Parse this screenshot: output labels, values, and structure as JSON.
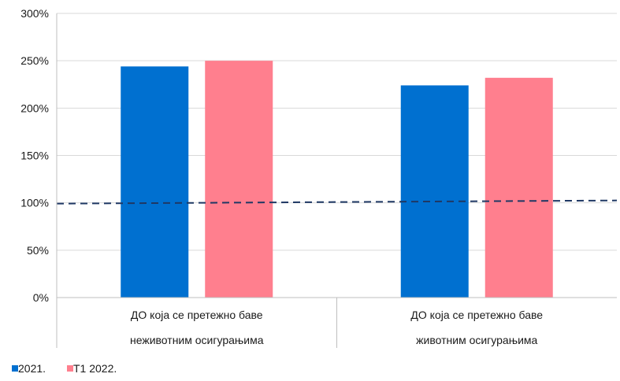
{
  "chart_data": {
    "type": "bar",
    "categories": [
      [
        "ДО која се претежно баве",
        "неживотним осигурањима"
      ],
      [
        "ДО која се претежно баве",
        "животним осигурањима"
      ]
    ],
    "series": [
      {
        "name": "2021.",
        "values": [
          244,
          224
        ],
        "color": "#0070D0"
      },
      {
        "name": "T1 2022.",
        "values": [
          250,
          232
        ],
        "color": "#FF7F8E"
      }
    ],
    "reference_line": {
      "value": 100,
      "style": "dashed",
      "color": "#1F3864"
    },
    "ylim": [
      0,
      300
    ],
    "yticks": [
      "0%",
      "50%",
      "100%",
      "150%",
      "200%",
      "250%",
      "300%"
    ],
    "ytick_values": [
      0,
      50,
      100,
      150,
      200,
      250,
      300
    ],
    "grid": true,
    "legend_position": "bottom-left"
  }
}
